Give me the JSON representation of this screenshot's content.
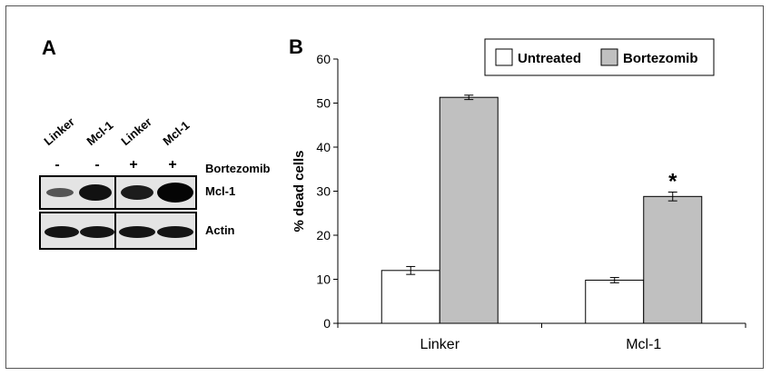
{
  "panel_a": {
    "letter": "A",
    "lanes": [
      {
        "label": "Linker",
        "treatment": "-"
      },
      {
        "label": "Mcl-1",
        "treatment": "-"
      },
      {
        "label": "Linker",
        "treatment": "+"
      },
      {
        "label": "Mcl-1",
        "treatment": "+"
      }
    ],
    "treatment_label": "Bortezomib",
    "blots": [
      {
        "label": "Mcl-1",
        "band_intensity": [
          0.45,
          0.95,
          0.85,
          1.0
        ]
      },
      {
        "label": "Actin",
        "band_intensity": [
          0.9,
          0.9,
          0.9,
          0.9
        ]
      }
    ]
  },
  "panel_b": {
    "letter": "B"
  },
  "chart_data": {
    "type": "bar",
    "categories": [
      "Linker",
      "Mcl-1"
    ],
    "series": [
      {
        "name": "Untreated",
        "values": [
          12,
          9.8
        ],
        "errors": [
          0.9,
          0.6
        ],
        "color": "#ffffff"
      },
      {
        "name": "Bortezomib",
        "values": [
          51.3,
          28.8
        ],
        "errors": [
          0.5,
          1.0
        ],
        "color": "#c0c0c0"
      }
    ],
    "title": "",
    "xlabel": "",
    "ylabel": "% dead cells",
    "ylim": [
      0,
      60
    ],
    "yticks": [
      0,
      10,
      20,
      30,
      40,
      50,
      60
    ],
    "legend_position": "top-right",
    "annotation": {
      "text": "*",
      "category": "Mcl-1",
      "series": "Bortezomib"
    },
    "grid": false
  }
}
